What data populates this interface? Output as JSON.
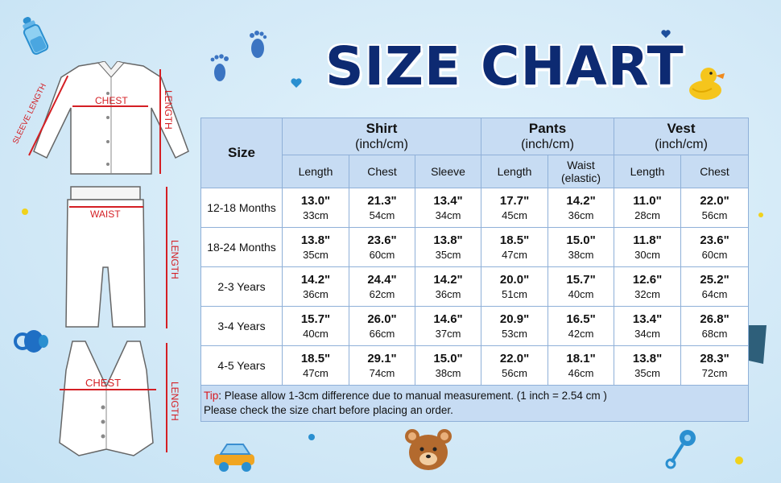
{
  "title": "SIZE CHART",
  "diagram_labels": {
    "sleeve_length": "SLEEVE LENGTH",
    "shirt_chest": "CHEST",
    "shirt_length": "LENGTH",
    "pants_waist": "WAIST",
    "pants_length": "LENGTH",
    "vest_chest": "CHEST",
    "vest_length": "LENGTH"
  },
  "table": {
    "size_header": "Size",
    "groups": [
      {
        "name": "Shirt",
        "unit": "(inch/cm)"
      },
      {
        "name": "Pants",
        "unit": "(inch/cm)"
      },
      {
        "name": "Vest",
        "unit": "(inch/cm)"
      }
    ],
    "subheaders": [
      "Length",
      "Chest",
      "Sleeve",
      "Length",
      "Waist",
      "(elastic)",
      "Length",
      "Chest"
    ],
    "rows": [
      {
        "size": "12-18 Months",
        "cells": [
          [
            "13.0\"",
            "33cm"
          ],
          [
            "21.3\"",
            "54cm"
          ],
          [
            "13.4\"",
            "34cm"
          ],
          [
            "17.7\"",
            "45cm"
          ],
          [
            "14.2\"",
            "36cm"
          ],
          [
            "11.0\"",
            "28cm"
          ],
          [
            "22.0\"",
            "56cm"
          ]
        ]
      },
      {
        "size": "18-24 Months",
        "cells": [
          [
            "13.8\"",
            "35cm"
          ],
          [
            "23.6\"",
            "60cm"
          ],
          [
            "13.8\"",
            "35cm"
          ],
          [
            "18.5\"",
            "47cm"
          ],
          [
            "15.0\"",
            "38cm"
          ],
          [
            "11.8\"",
            "30cm"
          ],
          [
            "23.6\"",
            "60cm"
          ]
        ]
      },
      {
        "size": "2-3 Years",
        "cells": [
          [
            "14.2\"",
            "36cm"
          ],
          [
            "24.4\"",
            "62cm"
          ],
          [
            "14.2\"",
            "36cm"
          ],
          [
            "20.0\"",
            "51cm"
          ],
          [
            "15.7\"",
            "40cm"
          ],
          [
            "12.6\"",
            "32cm"
          ],
          [
            "25.2\"",
            "64cm"
          ]
        ]
      },
      {
        "size": "3-4 Years",
        "cells": [
          [
            "15.7\"",
            "40cm"
          ],
          [
            "26.0\"",
            "66cm"
          ],
          [
            "14.6\"",
            "37cm"
          ],
          [
            "20.9\"",
            "53cm"
          ],
          [
            "16.5\"",
            "42cm"
          ],
          [
            "13.4\"",
            "34cm"
          ],
          [
            "26.8\"",
            "68cm"
          ]
        ]
      },
      {
        "size": "4-5 Years",
        "cells": [
          [
            "18.5\"",
            "47cm"
          ],
          [
            "29.1\"",
            "74cm"
          ],
          [
            "15.0\"",
            "38cm"
          ],
          [
            "22.0\"",
            "56cm"
          ],
          [
            "18.1\"",
            "46cm"
          ],
          [
            "13.8\"",
            "35cm"
          ],
          [
            "28.3\"",
            "72cm"
          ]
        ]
      }
    ],
    "tip_label": "Tip",
    "tip_text": ": Please allow 1-3cm difference due to manual measurement. (1 inch = 2.54 cm )",
    "tip_text2": "Please check the size chart before placing an order."
  },
  "colors": {
    "title": "#0d2a72",
    "header_bg": "#c7dcf3",
    "measure_red": "#d41f24",
    "background": "#d7ecf8"
  }
}
